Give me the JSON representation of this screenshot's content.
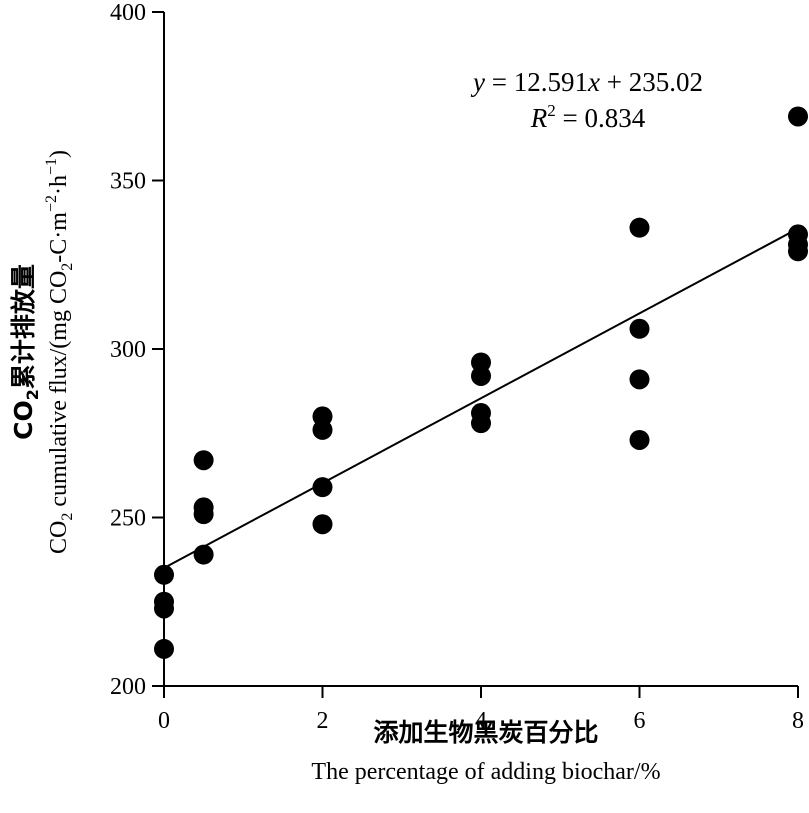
{
  "chart_data": {
    "type": "scatter",
    "title": "",
    "xlabel_cn": "添加生物黑炭百分比",
    "xlabel": "The percentage of adding biochar/%",
    "ylabel_cn_prefix": "CO",
    "ylabel_cn_sub": "2",
    "ylabel_cn_suffix": "累计排放量",
    "ylabel_prefix": "CO",
    "ylabel_sub": "2",
    "ylabel_mid": " cumulative flux/(mg CO",
    "ylabel_sub2": "2",
    "ylabel_mid2": "-C·m",
    "ylabel_sup1": "−2",
    "ylabel_mid3": "·h",
    "ylabel_sup2": "−1",
    "ylabel_end": ")",
    "xlim": [
      0,
      8
    ],
    "ylim": [
      200,
      400
    ],
    "xticks": [
      "0",
      "2",
      "4",
      "6",
      "8"
    ],
    "xtick_values": [
      0,
      2,
      4,
      6,
      8
    ],
    "yticks": [
      "200",
      "250",
      "300",
      "350",
      "400"
    ],
    "ytick_values": [
      200,
      250,
      300,
      350,
      400
    ],
    "grid": false,
    "points": [
      {
        "x": 0,
        "y": 233
      },
      {
        "x": 0,
        "y": 225
      },
      {
        "x": 0,
        "y": 223
      },
      {
        "x": 0,
        "y": 211
      },
      {
        "x": 0.5,
        "y": 267
      },
      {
        "x": 0.5,
        "y": 253
      },
      {
        "x": 0.5,
        "y": 251
      },
      {
        "x": 0.5,
        "y": 239
      },
      {
        "x": 2,
        "y": 280
      },
      {
        "x": 2,
        "y": 276
      },
      {
        "x": 2,
        "y": 259
      },
      {
        "x": 2,
        "y": 248
      },
      {
        "x": 4,
        "y": 296
      },
      {
        "x": 4,
        "y": 292
      },
      {
        "x": 4,
        "y": 281
      },
      {
        "x": 4,
        "y": 278
      },
      {
        "x": 6,
        "y": 336
      },
      {
        "x": 6,
        "y": 306
      },
      {
        "x": 6,
        "y": 291
      },
      {
        "x": 6,
        "y": 273
      },
      {
        "x": 8,
        "y": 369
      },
      {
        "x": 8,
        "y": 334
      },
      {
        "x": 8,
        "y": 331
      },
      {
        "x": 8,
        "y": 329
      }
    ],
    "trendline": {
      "slope": 12.591,
      "intercept": 235.02,
      "x_range": [
        0,
        8
      ]
    },
    "equation": {
      "y": "y",
      "rest_before_x": " = 12.591",
      "x": "x",
      "rest_after_x": " + 235.02",
      "r": "R",
      "r_sup": "2",
      "r_rest": " = 0.834"
    }
  }
}
